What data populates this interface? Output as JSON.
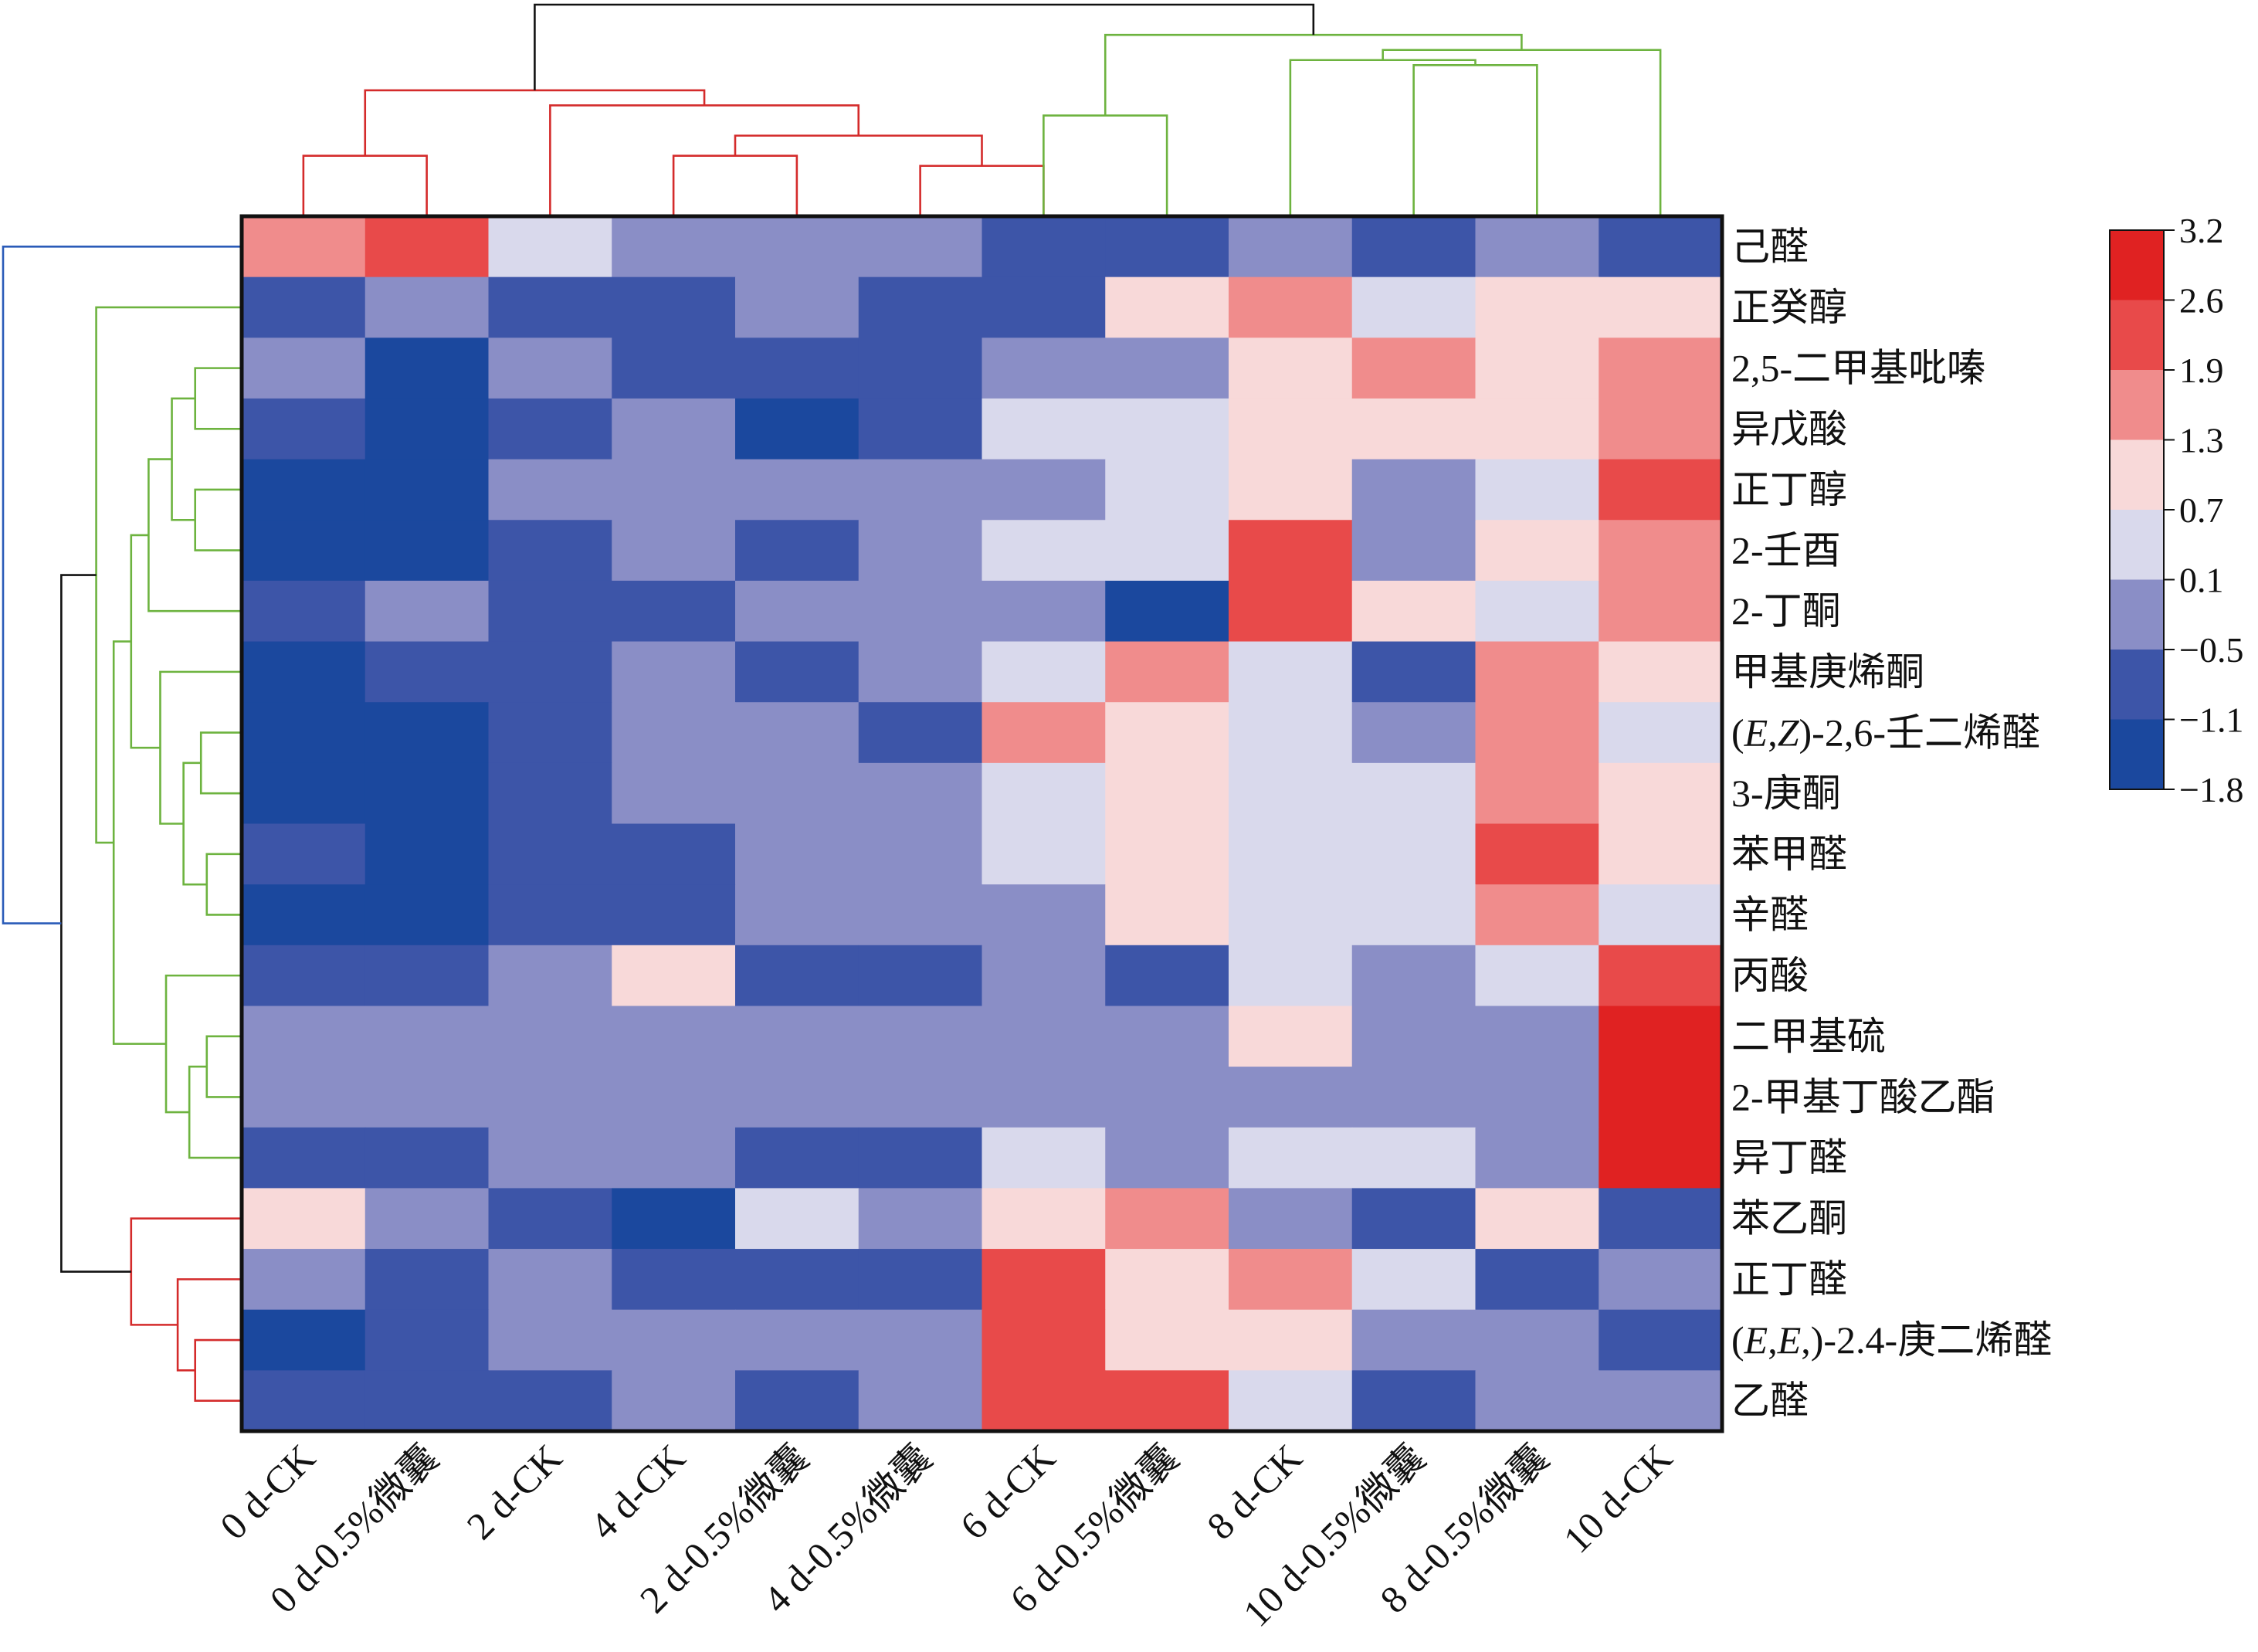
{
  "chart_data": {
    "type": "heatmap",
    "title": "",
    "xlabel": "",
    "ylabel": "",
    "columns": [
      "0 d-CK",
      "0 d-0.5%微囊",
      "2 d-CK",
      "4 d-CK",
      "2 d-0.5%微囊",
      "4 d-0.5%微囊",
      "6 d-CK",
      "6 d-0.5%微囊",
      "8 d-CK",
      "10 d-0.5%微囊",
      "8 d-0.5%微囊",
      "10 d-CK"
    ],
    "rows": [
      "己醛",
      "正癸醇",
      "2,5-二甲基吡嗪",
      "异戊酸",
      "正丁醇",
      "2-壬酉",
      "2-丁酮",
      "甲基庚烯酮",
      "(E,Z)-2,6-壬二烯醛",
      "3-庚酮",
      "苯甲醛",
      "辛醛",
      "丙酸",
      "二甲基硫",
      "2-甲基丁酸乙酯",
      "异丁醛",
      "苯乙酮",
      "正丁醛",
      "(E,E,)-2.4-庚二烯醛",
      "乙醛"
    ],
    "values": [
      [
        1.6,
        2.2,
        0.4,
        -0.2,
        -0.2,
        -0.2,
        -0.8,
        -0.8,
        -0.2,
        -0.8,
        -0.2,
        -0.8
      ],
      [
        -0.8,
        -0.2,
        -0.8,
        -0.8,
        -0.2,
        -0.8,
        -0.8,
        1.0,
        1.6,
        0.4,
        1.0,
        1.0
      ],
      [
        -0.2,
        -1.5,
        -0.2,
        -0.8,
        -0.8,
        -0.8,
        -0.2,
        -0.2,
        1.0,
        1.6,
        1.0,
        1.6
      ],
      [
        -0.8,
        -1.5,
        -0.8,
        -0.2,
        -1.5,
        -0.8,
        0.4,
        0.4,
        1.0,
        1.0,
        1.0,
        1.6
      ],
      [
        -1.5,
        -1.5,
        -0.2,
        -0.2,
        -0.2,
        -0.2,
        -0.2,
        0.4,
        1.0,
        -0.2,
        0.4,
        2.2
      ],
      [
        -1.5,
        -1.5,
        -0.8,
        -0.2,
        -0.8,
        -0.2,
        0.4,
        0.4,
        2.2,
        -0.2,
        1.0,
        1.6
      ],
      [
        -0.8,
        -0.2,
        -0.8,
        -0.8,
        -0.2,
        -0.2,
        -0.2,
        -1.5,
        2.2,
        1.0,
        0.4,
        1.6
      ],
      [
        -1.5,
        -0.8,
        -0.8,
        -0.2,
        -0.8,
        -0.2,
        0.4,
        1.6,
        0.4,
        -0.8,
        1.6,
        1.0
      ],
      [
        -1.5,
        -1.5,
        -0.8,
        -0.2,
        -0.2,
        -0.8,
        1.6,
        1.0,
        0.4,
        -0.2,
        1.6,
        0.4
      ],
      [
        -1.5,
        -1.5,
        -0.8,
        -0.2,
        -0.2,
        -0.2,
        0.4,
        1.0,
        0.4,
        0.4,
        1.6,
        1.0
      ],
      [
        -0.8,
        -1.5,
        -0.8,
        -0.8,
        -0.2,
        -0.2,
        0.4,
        1.0,
        0.4,
        0.4,
        2.2,
        1.0
      ],
      [
        -1.5,
        -1.5,
        -0.8,
        -0.8,
        -0.2,
        -0.2,
        -0.2,
        1.0,
        0.4,
        0.4,
        1.6,
        0.4
      ],
      [
        -0.8,
        -0.8,
        -0.2,
        1.0,
        -0.8,
        -0.8,
        -0.2,
        -0.8,
        0.4,
        -0.2,
        0.4,
        2.2
      ],
      [
        -0.2,
        -0.2,
        -0.2,
        -0.2,
        -0.2,
        -0.2,
        -0.2,
        -0.2,
        1.0,
        -0.2,
        -0.2,
        2.9
      ],
      [
        -0.2,
        -0.2,
        -0.2,
        -0.2,
        -0.2,
        -0.2,
        -0.2,
        -0.2,
        -0.2,
        -0.2,
        -0.2,
        2.9
      ],
      [
        -0.8,
        -0.8,
        -0.2,
        -0.2,
        -0.8,
        -0.8,
        0.4,
        -0.2,
        0.4,
        0.4,
        -0.2,
        2.9
      ],
      [
        1.0,
        -0.2,
        -0.8,
        -1.5,
        0.4,
        -0.2,
        1.0,
        1.6,
        -0.2,
        -0.8,
        1.0,
        -0.8
      ],
      [
        -0.2,
        -0.8,
        -0.2,
        -0.8,
        -0.8,
        -0.8,
        2.2,
        1.0,
        1.6,
        0.4,
        -0.8,
        -0.2
      ],
      [
        -1.5,
        -0.8,
        -0.2,
        -0.2,
        -0.2,
        -0.2,
        2.2,
        1.0,
        1.0,
        -0.2,
        -0.2,
        -0.8
      ],
      [
        -0.8,
        -0.8,
        -0.8,
        -0.2,
        -0.8,
        -0.2,
        2.2,
        2.2,
        0.4,
        -0.8,
        -0.2,
        -0.2
      ]
    ],
    "color_scale": {
      "ticks": [
        "3.2",
        "2.6",
        "1.9",
        "1.3",
        "0.7",
        "0.1",
        "−0.5",
        "−1.1",
        "−1.8"
      ],
      "bins": [
        {
          "min": 2.6,
          "max": 3.2,
          "color": "#e02222"
        },
        {
          "min": 1.9,
          "max": 2.6,
          "color": "#e84a4a"
        },
        {
          "min": 1.3,
          "max": 1.9,
          "color": "#f08c8c"
        },
        {
          "min": 0.7,
          "max": 1.3,
          "color": "#f8d9d9"
        },
        {
          "min": 0.1,
          "max": 0.7,
          "color": "#d9d9ec"
        },
        {
          "min": -0.5,
          "max": 0.1,
          "color": "#8a8ec6"
        },
        {
          "min": -1.1,
          "max": -0.5,
          "color": "#3d55a8"
        },
        {
          "min": -1.8,
          "max": -1.1,
          "color": "#1b489e"
        }
      ]
    },
    "column_dendrogram": {
      "leaf_order": [
        0,
        1,
        2,
        3,
        4,
        5,
        6,
        7,
        8,
        9,
        10,
        11
      ],
      "merges": [
        {
          "a": "L0",
          "b": "L1",
          "height": 0.12,
          "color": "#d42b2b"
        },
        {
          "a": "L3",
          "b": "L4",
          "height": 0.12,
          "color": "#d42b2b"
        },
        {
          "a": "L5",
          "b": "L6",
          "height": 0.1,
          "color": "#d42b2b"
        },
        {
          "a": "M1",
          "b": "M2",
          "height": 0.16,
          "color": "#d42b2b"
        },
        {
          "a": "L2",
          "b": "M3",
          "height": 0.22,
          "color": "#d42b2b"
        },
        {
          "a": "M0",
          "b": "M4",
          "height": 0.25,
          "color": "#d42b2b"
        },
        {
          "a": "L9",
          "b": "L10",
          "height": 0.3,
          "color": "#6db33f"
        },
        {
          "a": "L8",
          "b": "M6",
          "height": 0.31,
          "color": "#6db33f"
        },
        {
          "a": "M7",
          "b": "L11",
          "height": 0.33,
          "color": "#6db33f"
        },
        {
          "a": "L6",
          "b": "L7",
          "height": 0.2,
          "color": "#6db33f"
        },
        {
          "a": "M9",
          "b": "M8",
          "height": 0.36,
          "color": "#6db33f"
        },
        {
          "a": "M5",
          "b": "M10",
          "height": 0.42,
          "color": "#111111"
        }
      ]
    },
    "row_dendrogram": {
      "leaf_order": [
        0,
        1,
        2,
        3,
        4,
        5,
        6,
        7,
        8,
        9,
        10,
        11,
        12,
        13,
        14,
        15,
        16,
        17,
        18,
        19
      ],
      "merges": [
        {
          "a": "L2",
          "b": "L3",
          "height": 0.08,
          "color": "#6db33f"
        },
        {
          "a": "L4",
          "b": "L5",
          "height": 0.08,
          "color": "#6db33f"
        },
        {
          "a": "M0",
          "b": "M1",
          "height": 0.12,
          "color": "#6db33f"
        },
        {
          "a": "M2",
          "b": "L6",
          "height": 0.16,
          "color": "#6db33f"
        },
        {
          "a": "L8",
          "b": "L9",
          "height": 0.07,
          "color": "#6db33f"
        },
        {
          "a": "L10",
          "b": "L11",
          "height": 0.06,
          "color": "#6db33f"
        },
        {
          "a": "M4",
          "b": "M5",
          "height": 0.1,
          "color": "#6db33f"
        },
        {
          "a": "L7",
          "b": "M6",
          "height": 0.14,
          "color": "#6db33f"
        },
        {
          "a": "M3",
          "b": "M7",
          "height": 0.19,
          "color": "#6db33f"
        },
        {
          "a": "L13",
          "b": "L14",
          "height": 0.06,
          "color": "#6db33f"
        },
        {
          "a": "M9",
          "b": "L15",
          "height": 0.09,
          "color": "#6db33f"
        },
        {
          "a": "L12",
          "b": "M10",
          "height": 0.13,
          "color": "#6db33f"
        },
        {
          "a": "M8",
          "b": "M11",
          "height": 0.22,
          "color": "#6db33f"
        },
        {
          "a": "L1",
          "b": "M12",
          "height": 0.25,
          "color": "#6db33f"
        },
        {
          "a": "L18",
          "b": "L19",
          "height": 0.08,
          "color": "#d42b2b"
        },
        {
          "a": "L17",
          "b": "M14",
          "height": 0.11,
          "color": "#d42b2b"
        },
        {
          "a": "L16",
          "b": "M15",
          "height": 0.19,
          "color": "#d42b2b"
        },
        {
          "a": "M13",
          "b": "M16",
          "height": 0.31,
          "color": "#111111"
        },
        {
          "a": "L0",
          "b": "M17",
          "height": 0.41,
          "color": "#2a5bb8"
        }
      ]
    }
  }
}
